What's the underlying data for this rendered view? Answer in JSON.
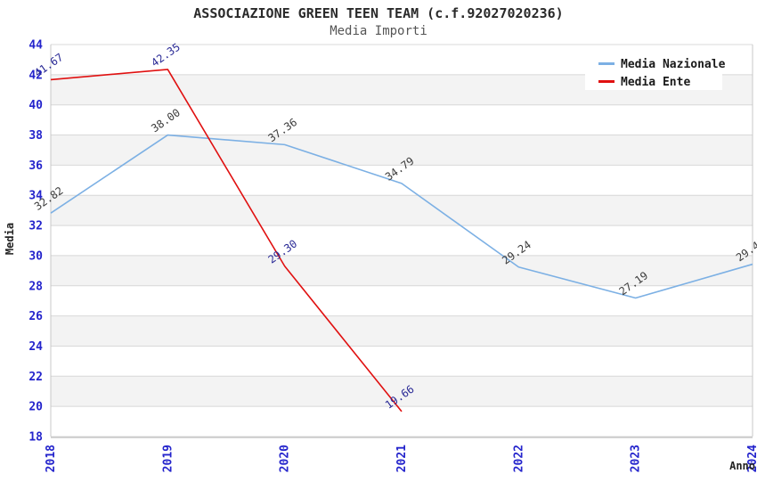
{
  "title": "ASSOCIAZIONE GREEN TEEN TEAM (c.f.92027020236)",
  "subtitle": "Media Importi",
  "colors": {
    "axis_tick_label": "#2424cc",
    "gridline": "#d8d8d8",
    "plot_border": "#c8c8c8",
    "band_fill": "#f3f3f3",
    "background": "#ffffff",
    "legend_background": "#ffffff"
  },
  "chart_data": {
    "type": "line",
    "title": "ASSOCIAZIONE GREEN TEEN TEAM (c.f.92027020236)",
    "subtitle": "Media Importi",
    "xlabel": "Anno",
    "ylabel": "Media",
    "x": [
      "2018",
      "2019",
      "2020",
      "2021",
      "2022",
      "2023",
      "2024"
    ],
    "ylim": [
      18,
      44
    ],
    "ytick_step": 2,
    "yticks": [
      18,
      20,
      22,
      24,
      26,
      28,
      30,
      32,
      34,
      36,
      38,
      40,
      42,
      44
    ],
    "grid": true,
    "alternating_bands": true,
    "legend_position": "top-right",
    "series": [
      {
        "name": "Media Nazionale",
        "color": "#7cb0e4",
        "label_color": "#3c3c3c",
        "values": [
          32.82,
          38.0,
          37.36,
          34.79,
          29.24,
          27.19,
          29.43
        ]
      },
      {
        "name": "Media Ente",
        "color": "#e01010",
        "label_color": "#2a2a96",
        "values": [
          41.67,
          42.35,
          29.3,
          19.66,
          null,
          null,
          null
        ]
      }
    ]
  }
}
